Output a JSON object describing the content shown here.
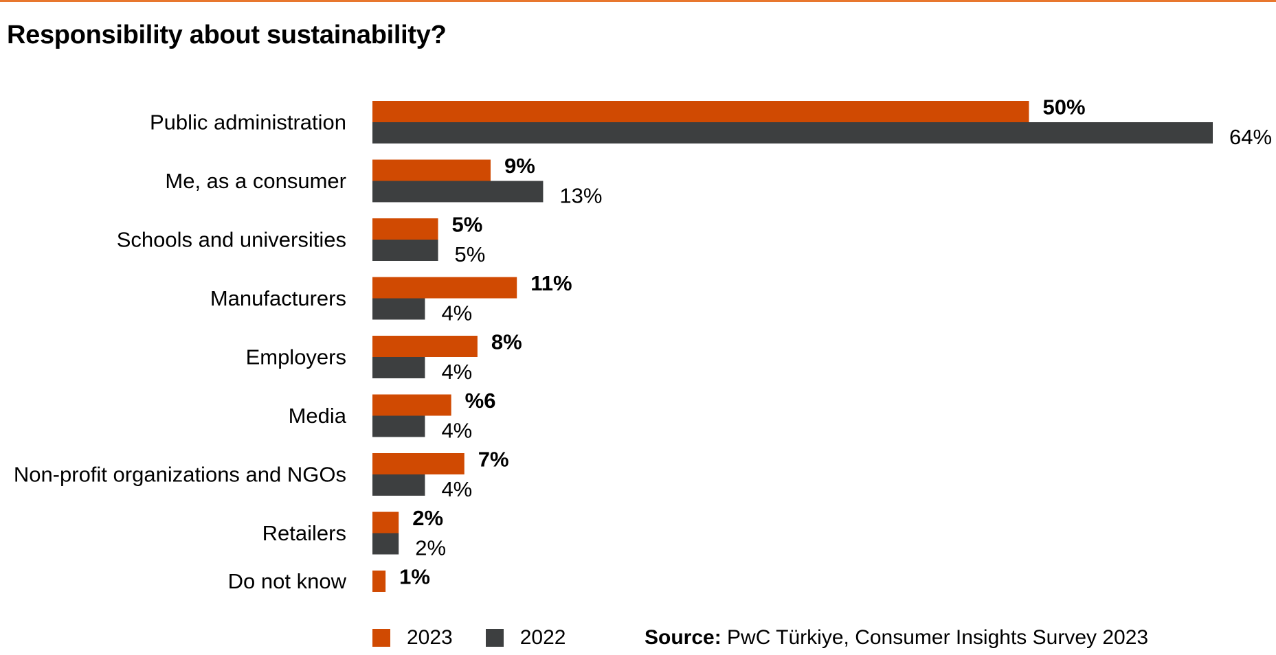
{
  "chart_data": {
    "type": "bar",
    "orientation": "horizontal",
    "title": "Responsibility about sustainability?",
    "categories": [
      "Public administration",
      "Me, as a consumer",
      "Schools and universities",
      "Manufacturers",
      "Employers",
      "Media",
      "Non-profit organizations and NGOs",
      "Retailers",
      "Do not know"
    ],
    "series": [
      {
        "name": "2023",
        "color": "#d04a02",
        "values": [
          50,
          9,
          5,
          11,
          8,
          6,
          7,
          2,
          1
        ],
        "labels": [
          "50%",
          "9%",
          "5%",
          "11%",
          "8%",
          "%6",
          "7%",
          "2%",
          "1%"
        ]
      },
      {
        "name": "2022",
        "color": "#3d3f40",
        "values": [
          64,
          13,
          5,
          4,
          4,
          4,
          4,
          2,
          null
        ],
        "labels": [
          "64%",
          "13%",
          "5%",
          "4%",
          "4%",
          "4%",
          "4%",
          "2%",
          null
        ]
      }
    ],
    "xlim": [
      0,
      64
    ],
    "grid": false,
    "legend_position": "bottom-left"
  },
  "title": "Responsibility about sustainability?",
  "accent_color": "#e8772e",
  "source": {
    "label": "Source:",
    "text": " PwC Türkiye, Consumer Insights Survey 2023"
  }
}
